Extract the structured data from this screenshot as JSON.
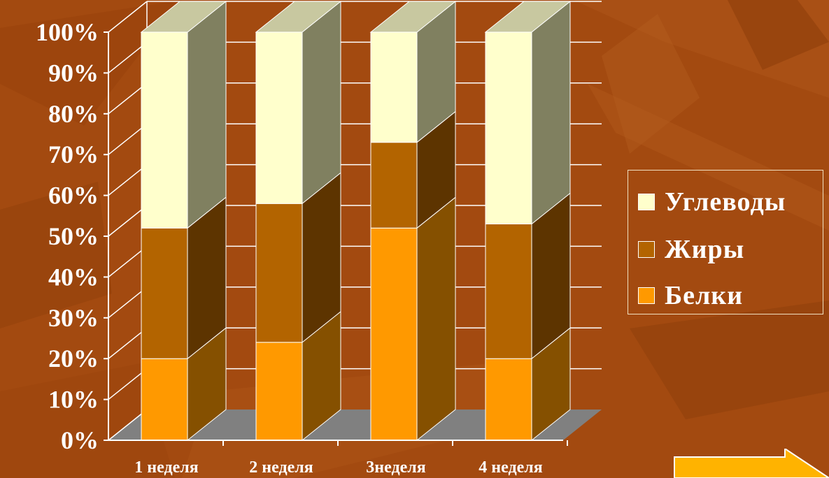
{
  "chart_data": {
    "type": "bar",
    "stacked": true,
    "three_d": true,
    "categories": [
      "1 неделя",
      "2 неделя",
      "3неделя",
      "4 неделя"
    ],
    "series": [
      {
        "name": "Белки",
        "values": [
          20,
          24,
          52,
          20
        ],
        "color": "#ff9900"
      },
      {
        "name": "Жиры",
        "values": [
          32,
          34,
          21,
          33
        ],
        "color": "#b36400"
      },
      {
        "name": "Углеводы",
        "values": [
          48,
          42,
          27,
          47
        ],
        "color": "#ffffcc"
      }
    ],
    "y_ticks": [
      "0%",
      "10%",
      "20%",
      "30%",
      "40%",
      "50%",
      "60%",
      "70%",
      "80%",
      "90%",
      "100%"
    ],
    "ylim": [
      0,
      100
    ],
    "grid": true,
    "legend_position": "right",
    "legend_order": [
      "Углеводы",
      "Жиры",
      "Белки"
    ]
  },
  "colors": {
    "background": "#a34a10",
    "floor": "#808080",
    "gridline": "#ffffff",
    "text": "#ffffff",
    "arrow": "#ffb300"
  },
  "navigation": {
    "next_icon": "right-arrow-icon"
  }
}
